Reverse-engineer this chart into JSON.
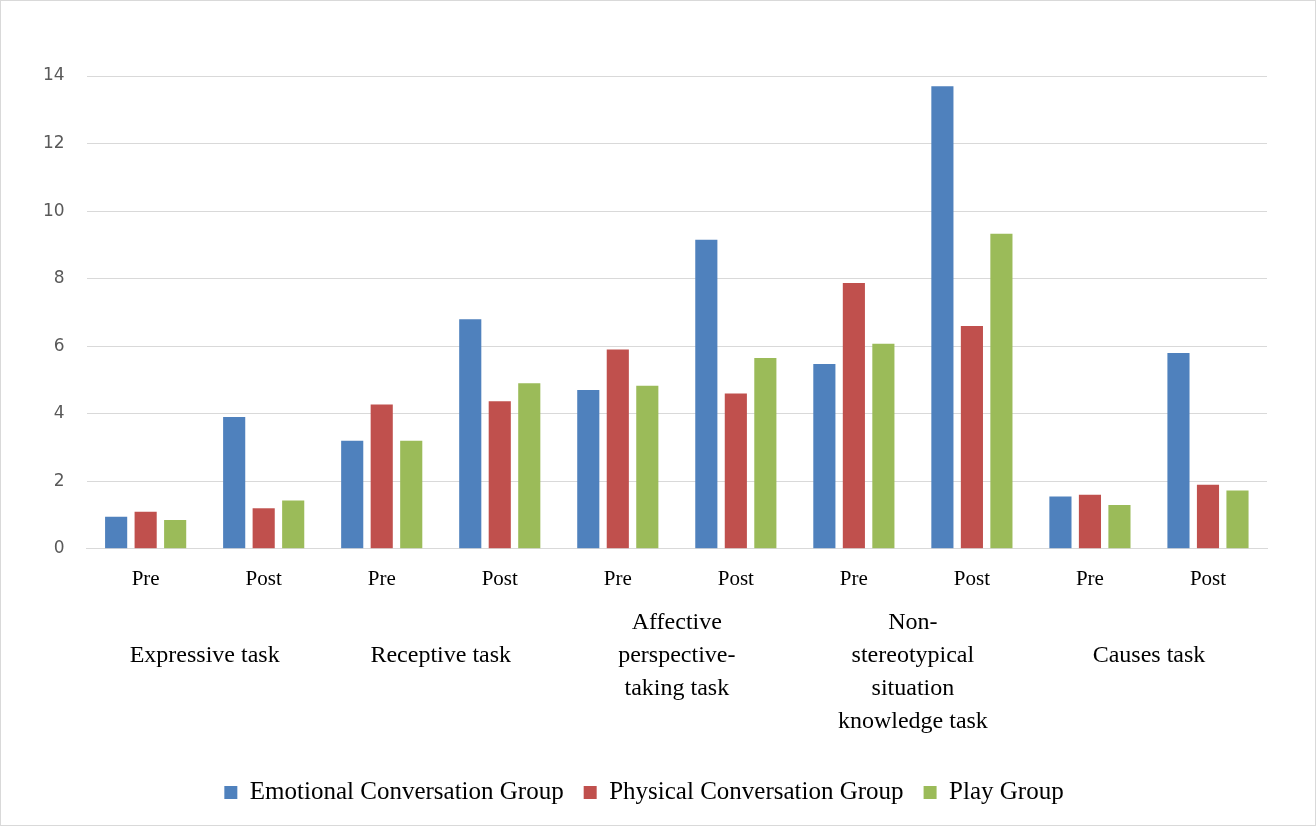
{
  "chart_data": {
    "type": "bar",
    "categories": [
      "Pre",
      "Post",
      "Pre",
      "Post",
      "Pre",
      "Post",
      "Pre",
      "Post",
      "Pre",
      "Post"
    ],
    "series": [
      {
        "name": "Emotional Conversation Group",
        "color": "#4f81bd",
        "values": [
          0.95,
          3.9,
          3.2,
          6.8,
          4.7,
          9.15,
          5.47,
          13.7,
          1.55,
          5.8
        ]
      },
      {
        "name": "Physical Conversation Group",
        "color": "#c0504d",
        "values": [
          1.1,
          1.2,
          4.27,
          4.37,
          5.9,
          4.6,
          7.87,
          6.6,
          1.6,
          1.9
        ]
      },
      {
        "name": "Play Group",
        "color": "#9bbb59",
        "values": [
          0.85,
          1.43,
          3.2,
          4.9,
          4.83,
          5.65,
          6.07,
          9.33,
          1.3,
          1.73
        ]
      }
    ],
    "annotations": [
      "Expressive task",
      "Receptive task",
      "Affective perspective-taking task",
      "Non-stereotypical situation knowledge task",
      "Causes task"
    ],
    "ylim": [
      0,
      14
    ],
    "yticks": [
      0,
      2,
      4,
      6,
      8,
      10,
      12,
      14
    ],
    "grid": "y",
    "legend": "bottom"
  }
}
